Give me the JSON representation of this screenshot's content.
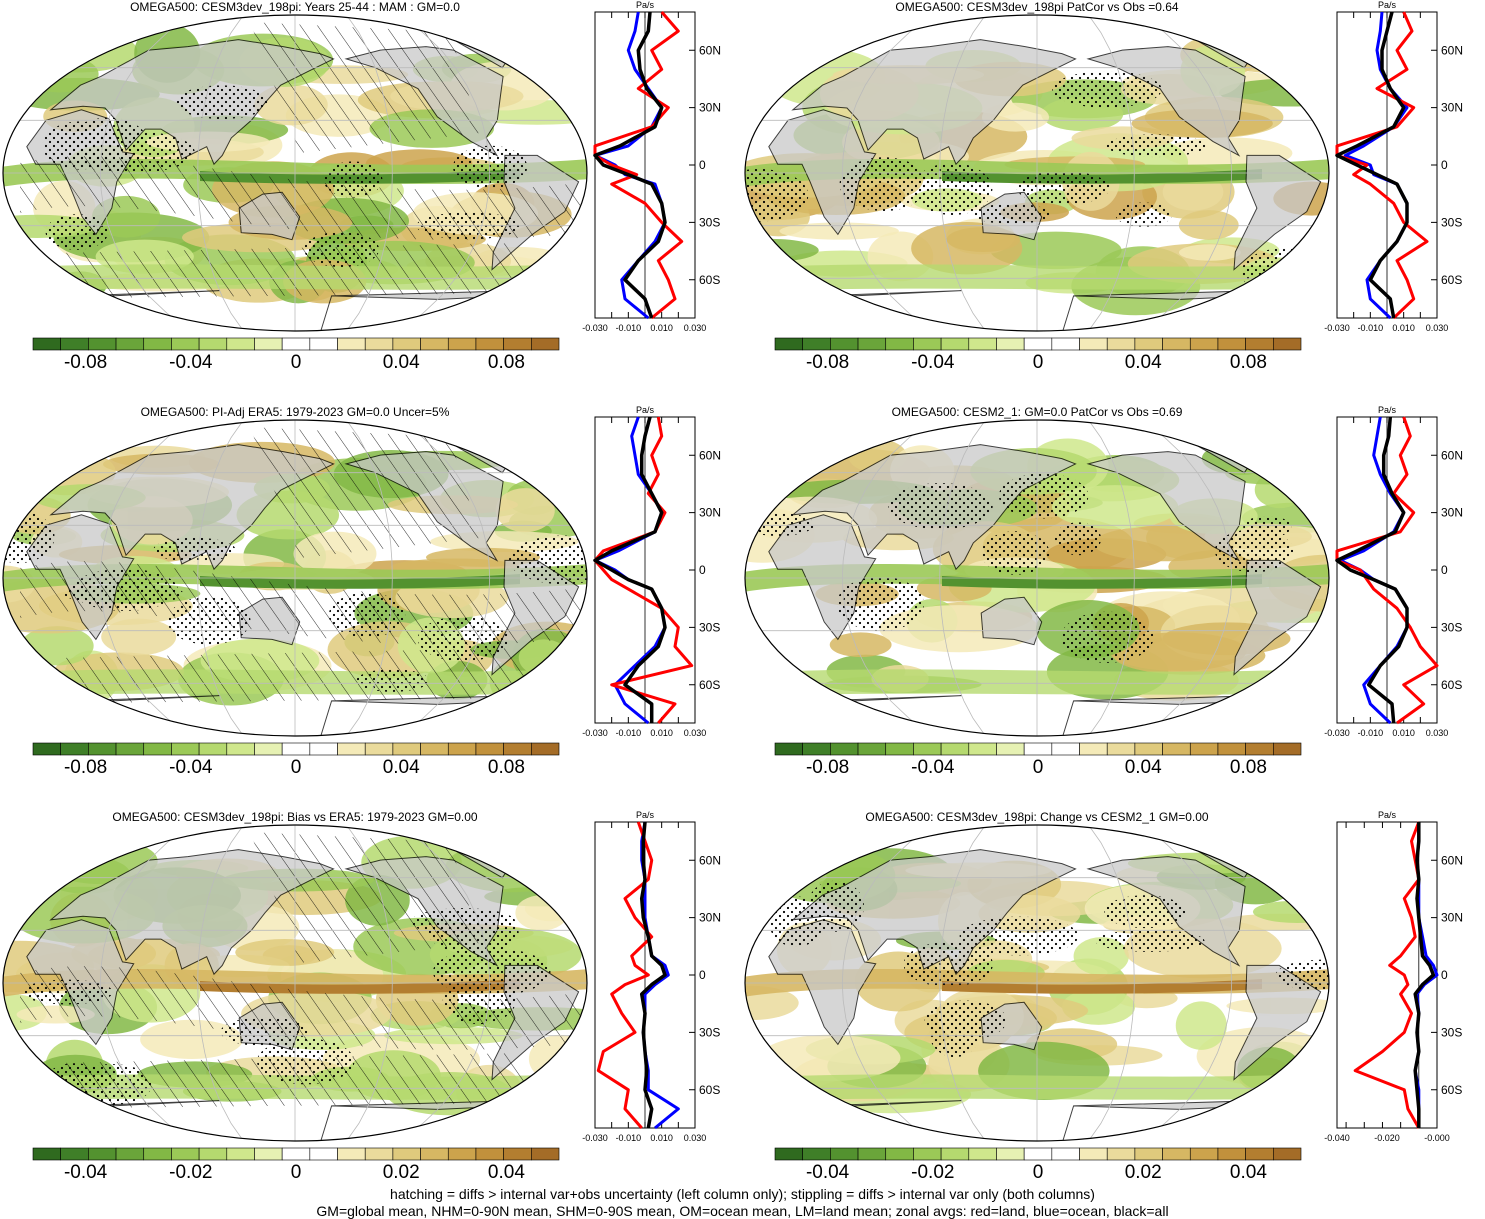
{
  "footer": {
    "line1": "hatching = diffs > internal var+obs uncertainty (left column only); stippling = diffs > internal var only (both columns)",
    "line2": "GM=global mean, NHM=0-90N mean, SHM=0-90S mean, OM=ocean mean, LM=land mean; zonal avgs: red=land, blue=ocean, black=all"
  },
  "colors": {
    "land_gray": "#c8c8c8",
    "palette": [
      "#2f6a1f",
      "#3f7f28",
      "#53922f",
      "#6aa53a",
      "#82b845",
      "#9bc957",
      "#b5d96f",
      "#cfe78c",
      "#e6f1b3",
      "#ffffff",
      "#ffffff",
      "#f4eab8",
      "#eadb9c",
      "#dfca7d",
      "#d6b763",
      "#cca34c",
      "#c1913c",
      "#b37e30",
      "#a46c27"
    ],
    "zonal_land": "#ff0000",
    "zonal_ocean": "#0000ff",
    "zonal_all": "#000000"
  },
  "panels": [
    {
      "title": "OMEGA500: CESM3dev_198pi: Years 25-44 : MAM : GM=0.0",
      "hatch": true,
      "colorbar_labels": [
        "-0.08",
        "-0.04",
        "0",
        "0.04",
        "0.08"
      ],
      "profile": {
        "unit": "Pa/s",
        "xlim": [
          -0.03,
          0.03
        ],
        "ticks": [
          -0.03,
          -0.02,
          -0.01,
          0,
          0.01,
          0.02,
          0.03
        ],
        "tick_labels": [
          "-0.030",
          "-0.010",
          "0.010",
          "0.030"
        ],
        "lat_labels": [
          "60N",
          "30N",
          "0",
          "30S",
          "60S"
        ]
      }
    },
    {
      "title": "OMEGA500: CESM3dev_198pi PatCor vs Obs =0.64",
      "hatch": false,
      "colorbar_labels": [
        "-0.08",
        "-0.04",
        "0",
        "0.04",
        "0.08"
      ],
      "profile": {
        "unit": "Pa/s",
        "xlim": [
          -0.03,
          0.03
        ],
        "ticks": [
          -0.03,
          -0.02,
          -0.01,
          0,
          0.01,
          0.02,
          0.03
        ],
        "tick_labels": [
          "-0.030",
          "-0.010",
          "0.010",
          "0.030"
        ],
        "lat_labels": [
          "60N",
          "30N",
          "0",
          "30S",
          "60S"
        ]
      }
    },
    {
      "title": "OMEGA500: PI-Adj ERA5: 1979-2023 GM=0.0 Uncer=5%",
      "hatch": true,
      "colorbar_labels": [
        "-0.08",
        "-0.04",
        "0",
        "0.04",
        "0.08"
      ],
      "profile": {
        "unit": "Pa/s",
        "xlim": [
          -0.03,
          0.03
        ],
        "ticks": [
          -0.03,
          -0.02,
          -0.01,
          0,
          0.01,
          0.02,
          0.03
        ],
        "tick_labels": [
          "-0.030",
          "-0.010",
          "0.010",
          "0.030"
        ],
        "lat_labels": [
          "60N",
          "30N",
          "0",
          "30S",
          "60S"
        ]
      }
    },
    {
      "title": "OMEGA500: CESM2_1: GM=0.0 PatCor vs Obs =0.69",
      "hatch": false,
      "colorbar_labels": [
        "-0.08",
        "-0.04",
        "0",
        "0.04",
        "0.08"
      ],
      "profile": {
        "unit": "Pa/s",
        "xlim": [
          -0.03,
          0.03
        ],
        "ticks": [
          -0.03,
          -0.02,
          -0.01,
          0,
          0.01,
          0.02,
          0.03
        ],
        "tick_labels": [
          "-0.030",
          "-0.010",
          "0.010",
          "0.030"
        ],
        "lat_labels": [
          "60N",
          "30N",
          "0",
          "30S",
          "60S"
        ]
      }
    },
    {
      "title": "OMEGA500: CESM3dev_198pi: Bias vs ERA5: 1979-2023 GM=0.00",
      "hatch": true,
      "colorbar_labels": [
        "-0.04",
        "-0.02",
        "0",
        "0.02",
        "0.04"
      ],
      "profile": {
        "unit": "Pa/s",
        "xlim": [
          -0.03,
          0.03
        ],
        "ticks": [
          -0.03,
          -0.02,
          -0.01,
          0,
          0.01,
          0.02,
          0.03
        ],
        "tick_labels": [
          "-0.030",
          "-0.010",
          "0.010",
          "0.030"
        ],
        "lat_labels": [
          "60N",
          "30N",
          "0",
          "30S",
          "60S"
        ]
      }
    },
    {
      "title": "OMEGA500: CESM3dev_198pi: Change vs CESM2_1 GM=0.00",
      "hatch": false,
      "colorbar_labels": [
        "-0.04",
        "-0.02",
        "0",
        "0.02",
        "0.04"
      ],
      "profile": {
        "unit": "Pa/s",
        "xlim": [
          -0.045,
          0.01
        ],
        "ticks": [
          -0.04,
          -0.03,
          -0.02,
          -0.01,
          0,
          0.01
        ],
        "tick_labels": [
          "-0.040",
          "-0.020",
          "-0.000"
        ],
        "lat_labels": [
          "60N",
          "30N",
          "0",
          "30S",
          "60S"
        ]
      }
    }
  ],
  "chart_data": [
    {
      "type": "heatmap",
      "title": "OMEGA500: CESM3dev_198pi: Years 25-44 : MAM : GM=0.0",
      "colorbar_range": [
        -0.1,
        0.1
      ],
      "colorbar_ticks": [
        -0.08,
        -0.04,
        0,
        0.04,
        0.08
      ],
      "zonal_mean": {
        "unit": "Pa/s",
        "lat": [
          80,
          70,
          60,
          50,
          40,
          30,
          20,
          10,
          5,
          0,
          -5,
          -10,
          -20,
          -30,
          -40,
          -50,
          -60,
          -70,
          -80
        ],
        "all": [
          0.003,
          0.002,
          -0.004,
          -0.003,
          0.001,
          0.01,
          0.006,
          -0.015,
          -0.035,
          -0.025,
          -0.01,
          0.004,
          0.01,
          0.012,
          0.008,
          -0.004,
          -0.012,
          0.0,
          0.004
        ],
        "land": [
          0.01,
          0.02,
          0.004,
          0.01,
          -0.004,
          0.014,
          0.004,
          -0.03,
          -0.04,
          -0.02,
          -0.005,
          -0.02,
          0.0,
          0.01,
          0.022,
          0.008,
          0.014,
          0.018,
          0.004
        ],
        "ocean": [
          -0.004,
          -0.006,
          -0.01,
          -0.006,
          0.002,
          0.01,
          0.004,
          -0.01,
          -0.03,
          -0.018,
          -0.012,
          0.006,
          0.01,
          0.012,
          0.006,
          -0.004,
          -0.014,
          -0.012,
          0.002
        ]
      }
    },
    {
      "type": "heatmap",
      "title": "OMEGA500: CESM3dev_198pi PatCor vs Obs =0.64",
      "colorbar_range": [
        -0.1,
        0.1
      ],
      "colorbar_ticks": [
        -0.08,
        -0.04,
        0,
        0.04,
        0.08
      ],
      "zonal_mean": {
        "unit": "Pa/s",
        "lat": [
          80,
          70,
          60,
          50,
          40,
          30,
          20,
          10,
          5,
          0,
          -5,
          -10,
          -20,
          -30,
          -40,
          -50,
          -60,
          -70,
          -80
        ],
        "all": [
          0.003,
          0.0,
          -0.003,
          -0.003,
          0.002,
          0.01,
          0.004,
          -0.018,
          -0.03,
          -0.018,
          -0.006,
          0.006,
          0.012,
          0.012,
          0.006,
          -0.004,
          -0.01,
          0.002,
          0.004
        ],
        "land": [
          0.01,
          0.015,
          0.006,
          0.012,
          -0.006,
          0.016,
          0.006,
          -0.03,
          -0.04,
          -0.012,
          -0.02,
          -0.01,
          0.004,
          0.01,
          0.024,
          0.006,
          0.012,
          0.016,
          0.004
        ],
        "ocean": [
          -0.003,
          -0.004,
          -0.006,
          -0.004,
          0.002,
          0.012,
          0.004,
          -0.014,
          -0.025,
          -0.01,
          -0.008,
          0.006,
          0.012,
          0.012,
          0.006,
          -0.004,
          -0.012,
          -0.01,
          0.002
        ]
      }
    },
    {
      "type": "heatmap",
      "title": "OMEGA500: PI-Adj ERA5: 1979-2023 GM=0.0 Uncer=5%",
      "colorbar_range": [
        -0.1,
        0.1
      ],
      "colorbar_ticks": [
        -0.08,
        -0.04,
        0,
        0.04,
        0.08
      ],
      "zonal_mean": {
        "unit": "Pa/s",
        "lat": [
          80,
          70,
          60,
          50,
          40,
          30,
          20,
          10,
          5,
          0,
          -5,
          -10,
          -20,
          -30,
          -40,
          -50,
          -60,
          -70,
          -80
        ],
        "all": [
          0.003,
          0.0,
          -0.002,
          -0.002,
          0.004,
          0.01,
          0.006,
          -0.02,
          -0.035,
          -0.02,
          -0.01,
          0.004,
          0.01,
          0.012,
          0.008,
          -0.004,
          -0.012,
          0.004,
          0.004
        ],
        "land": [
          0.008,
          0.01,
          0.004,
          0.008,
          0.002,
          0.012,
          0.006,
          -0.025,
          -0.04,
          -0.025,
          -0.02,
          -0.01,
          0.01,
          0.02,
          0.018,
          0.028,
          -0.02,
          0.018,
          0.008
        ],
        "ocean": [
          -0.004,
          -0.008,
          -0.006,
          -0.004,
          0.004,
          0.01,
          0.006,
          -0.016,
          -0.03,
          -0.018,
          -0.01,
          0.004,
          0.01,
          0.012,
          0.006,
          -0.006,
          -0.018,
          -0.012,
          0.002
        ]
      }
    },
    {
      "type": "heatmap",
      "title": "OMEGA500: CESM2_1: GM=0.0 PatCor vs Obs =0.69",
      "colorbar_range": [
        -0.1,
        0.1
      ],
      "colorbar_ticks": [
        -0.08,
        -0.04,
        0,
        0.04,
        0.08
      ],
      "zonal_mean": {
        "unit": "Pa/s",
        "lat": [
          80,
          70,
          60,
          50,
          40,
          30,
          20,
          10,
          5,
          0,
          -5,
          -10,
          -20,
          -30,
          -40,
          -50,
          -60,
          -70,
          -80
        ],
        "all": [
          0.002,
          0.001,
          -0.002,
          -0.002,
          0.003,
          0.01,
          0.005,
          -0.018,
          -0.032,
          -0.022,
          -0.008,
          0.005,
          0.012,
          0.012,
          0.007,
          -0.004,
          -0.011,
          0.003,
          0.004
        ],
        "land": [
          0.01,
          0.014,
          0.008,
          0.012,
          0.004,
          0.016,
          0.008,
          -0.03,
          -0.04,
          -0.016,
          -0.012,
          -0.008,
          0.006,
          0.014,
          0.02,
          0.03,
          0.01,
          0.022,
          0.006
        ],
        "ocean": [
          -0.004,
          -0.006,
          -0.008,
          -0.004,
          0.002,
          0.01,
          0.004,
          -0.014,
          -0.028,
          -0.016,
          -0.008,
          0.005,
          0.012,
          0.012,
          0.006,
          -0.004,
          -0.014,
          -0.01,
          0.002
        ]
      }
    },
    {
      "type": "heatmap",
      "title": "OMEGA500: CESM3dev_198pi: Bias vs ERA5: 1979-2023 GM=0.00",
      "colorbar_range": [
        -0.05,
        0.05
      ],
      "colorbar_ticks": [
        -0.04,
        -0.02,
        0,
        0.02,
        0.04
      ],
      "zonal_mean": {
        "unit": "Pa/s",
        "lat": [
          80,
          70,
          60,
          50,
          40,
          30,
          20,
          10,
          5,
          0,
          -5,
          -10,
          -20,
          -30,
          -40,
          -50,
          -60,
          -70,
          -80
        ],
        "all": [
          0.0,
          -0.001,
          -0.001,
          0.0,
          -0.002,
          -0.001,
          0.002,
          0.004,
          0.01,
          0.012,
          0.004,
          -0.002,
          0.0,
          -0.001,
          0.0,
          0.001,
          0.0,
          0.004,
          0.002
        ],
        "land": [
          -0.004,
          0.0,
          0.004,
          0.002,
          -0.012,
          -0.006,
          0.004,
          -0.008,
          -0.006,
          0.002,
          -0.012,
          -0.02,
          -0.014,
          -0.006,
          -0.025,
          -0.028,
          -0.01,
          -0.012,
          -0.002
        ],
        "ocean": [
          0.0,
          -0.002,
          -0.002,
          0.0,
          0.0,
          0.0,
          0.002,
          0.004,
          0.012,
          0.014,
          0.006,
          0.0,
          0.0,
          -0.001,
          0.0,
          0.002,
          0.002,
          0.02,
          0.006
        ]
      }
    },
    {
      "type": "heatmap",
      "title": "OMEGA500: CESM3dev_198pi: Change vs CESM2_1 GM=0.00",
      "colorbar_range": [
        -0.05,
        0.05
      ],
      "colorbar_ticks": [
        -0.04,
        -0.02,
        0,
        0.02,
        0.04
      ],
      "zonal_mean": {
        "unit": "Pa/s",
        "lat": [
          80,
          70,
          60,
          50,
          40,
          30,
          20,
          10,
          5,
          0,
          -5,
          -10,
          -20,
          -30,
          -40,
          -50,
          -60,
          -70,
          -80
        ],
        "all": [
          0.0,
          0.0,
          -0.001,
          0.0,
          -0.001,
          0.0,
          0.001,
          0.002,
          0.006,
          0.008,
          0.002,
          -0.002,
          0.0,
          -0.001,
          0.0,
          -0.002,
          -0.001,
          0.0,
          0.0
        ],
        "land": [
          0.0,
          -0.004,
          -0.002,
          0.0,
          -0.008,
          -0.004,
          -0.002,
          -0.01,
          -0.016,
          -0.008,
          -0.006,
          -0.01,
          -0.004,
          -0.008,
          -0.02,
          -0.035,
          -0.008,
          -0.006,
          0.0
        ],
        "ocean": [
          0.0,
          0.0,
          -0.001,
          0.0,
          0.0,
          0.0,
          0.002,
          0.004,
          0.008,
          0.01,
          0.003,
          -0.001,
          0.0,
          -0.001,
          0.0,
          -0.002,
          0.0,
          0.0,
          0.0
        ]
      }
    }
  ]
}
